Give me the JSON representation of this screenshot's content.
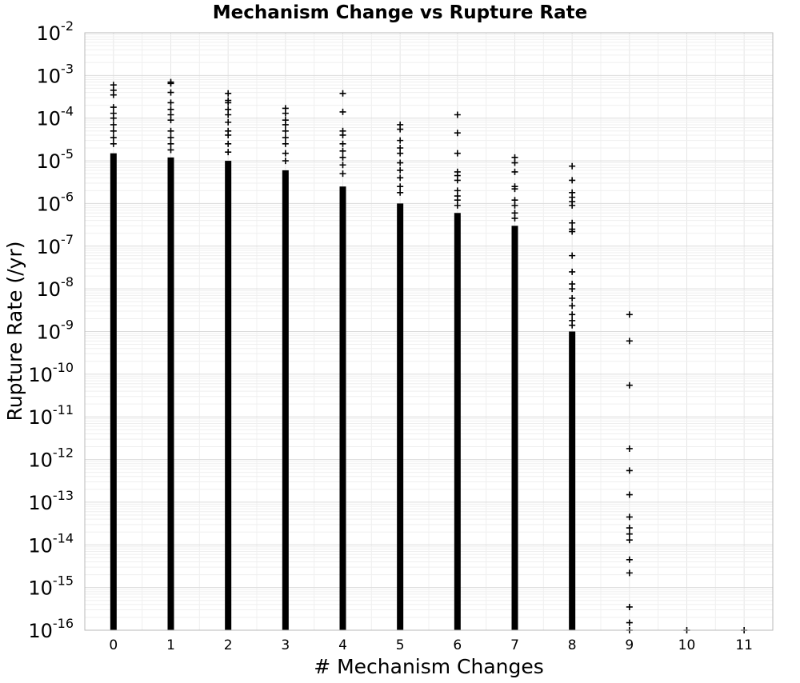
{
  "chart_data": {
    "type": "scatter",
    "title": "Mechanism Change vs Rupture Rate",
    "xlabel": "# Mechanism Changes",
    "ylabel": "Rupture Rate (/yr)",
    "yscale": "log",
    "xlim": [
      -0.5,
      11.5
    ],
    "ylim": [
      1e-16,
      0.01
    ],
    "x_ticks": [
      "0",
      "1",
      "2",
      "3",
      "4",
      "5",
      "6",
      "7",
      "8",
      "9",
      "10",
      "11"
    ],
    "y_ticks": [
      {
        "base": "10",
        "exp": "-16"
      },
      {
        "base": "10",
        "exp": "-15"
      },
      {
        "base": "10",
        "exp": "-14"
      },
      {
        "base": "10",
        "exp": "-13"
      },
      {
        "base": "10",
        "exp": "-12"
      },
      {
        "base": "10",
        "exp": "-11"
      },
      {
        "base": "10",
        "exp": "-10"
      },
      {
        "base": "10",
        "exp": "-9"
      },
      {
        "base": "10",
        "exp": "-8"
      },
      {
        "base": "10",
        "exp": "-7"
      },
      {
        "base": "10",
        "exp": "-6"
      },
      {
        "base": "10",
        "exp": "-5"
      },
      {
        "base": "10",
        "exp": "-4"
      },
      {
        "base": "10",
        "exp": "-3"
      },
      {
        "base": "10",
        "exp": "-2"
      }
    ],
    "grid": true,
    "marker": "plus",
    "marker_color": "#000000",
    "series": [
      {
        "x": 0,
        "dense_range": [
          1e-16,
          1.5e-05
        ],
        "points": [
          0.0006,
          0.00045,
          0.00035,
          0.00018,
          0.00013,
          0.0001,
          7e-05,
          5e-05,
          3.5e-05,
          2.5e-05
        ]
      },
      {
        "x": 1,
        "dense_range": [
          1e-16,
          1.2e-05
        ],
        "points": [
          0.0007,
          0.00065,
          0.0004,
          0.00023,
          0.00016,
          0.00012,
          9e-05,
          5e-05,
          3.5e-05,
          2.5e-05,
          1.8e-05
        ]
      },
      {
        "x": 2,
        "dense_range": [
          1e-16,
          1e-05
        ],
        "points": [
          0.00038,
          0.00026,
          0.00023,
          0.00016,
          0.00012,
          8e-05,
          5e-05,
          4e-05,
          2.5e-05,
          1.6e-05
        ]
      },
      {
        "x": 3,
        "dense_range": [
          1e-16,
          6e-06
        ],
        "points": [
          0.00017,
          0.00013,
          9e-05,
          7e-05,
          5e-05,
          3.5e-05,
          2.5e-05,
          1.5e-05,
          1e-05
        ]
      },
      {
        "x": 4,
        "dense_range": [
          1e-16,
          2.5e-06
        ],
        "points": [
          0.00038,
          0.00014,
          5e-05,
          4e-05,
          2.5e-05,
          1.7e-05,
          1.2e-05,
          8e-06,
          5e-06
        ]
      },
      {
        "x": 5,
        "dense_range": [
          1e-16,
          1e-06
        ],
        "points": [
          7e-05,
          5.5e-05,
          3e-05,
          2e-05,
          1.5e-05,
          9e-06,
          6e-06,
          4e-06,
          2.5e-06,
          1.8e-06
        ]
      },
      {
        "x": 6,
        "dense_range": [
          1e-16,
          6e-07
        ],
        "points": [
          0.00012,
          4.5e-05,
          1.5e-05,
          5.5e-06,
          4.5e-06,
          3.5e-06,
          2e-06,
          1.5e-06,
          1.2e-06,
          9e-07
        ]
      },
      {
        "x": 7,
        "dense_range": [
          1e-16,
          3e-07
        ],
        "points": [
          1.2e-05,
          9e-06,
          5.5e-06,
          2.5e-06,
          2.2e-06,
          1.2e-06,
          9e-07,
          6e-07,
          4.5e-07
        ]
      },
      {
        "x": 8,
        "dense_range": [
          1e-16,
          1e-09
        ],
        "points": [
          7.5e-06,
          3.5e-06,
          1.8e-06,
          1.4e-06,
          1.1e-06,
          9e-07,
          3.5e-07,
          2.5e-07,
          2.2e-07,
          6e-08,
          2.5e-08,
          1.3e-08,
          1e-08,
          6e-09,
          4e-09,
          2.5e-09,
          1.8e-09,
          1.4e-09
        ]
      },
      {
        "x": 9,
        "dense_range": null,
        "points": [
          2.5e-09,
          6e-10,
          5.5e-11,
          1.8e-12,
          5.5e-13,
          1.5e-13,
          4.5e-14,
          2.5e-14,
          1.8e-14,
          1.3e-14,
          4.5e-15,
          2.2e-15,
          3.5e-16,
          1.5e-16,
          1e-16
        ]
      },
      {
        "x": 10,
        "dense_range": null,
        "points": [
          1e-16
        ]
      },
      {
        "x": 11,
        "dense_range": null,
        "points": [
          1e-16
        ]
      }
    ]
  }
}
